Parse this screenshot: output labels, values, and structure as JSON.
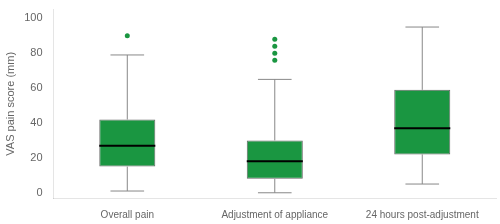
{
  "chart_data": {
    "type": "box",
    "categories": [
      "Overall pain",
      "Adjustment of appliance",
      "24 hours post-adjustment"
    ],
    "q1": [
      15,
      8,
      22
    ],
    "median": [
      27,
      18,
      37
    ],
    "q3": [
      42,
      30,
      59
    ],
    "whisker_low": [
      1,
      0,
      5
    ],
    "whisker_high": [
      79,
      65,
      95
    ],
    "outliers": [
      [
        90
      ],
      [
        76,
        80,
        84,
        88
      ],
      []
    ],
    "color": "#1a9641",
    "ylabel": "VAS pain score (mm)",
    "ylim": [
      -3,
      105
    ],
    "yticks": [
      0,
      20,
      40,
      60,
      80,
      100
    ],
    "grid": false
  }
}
